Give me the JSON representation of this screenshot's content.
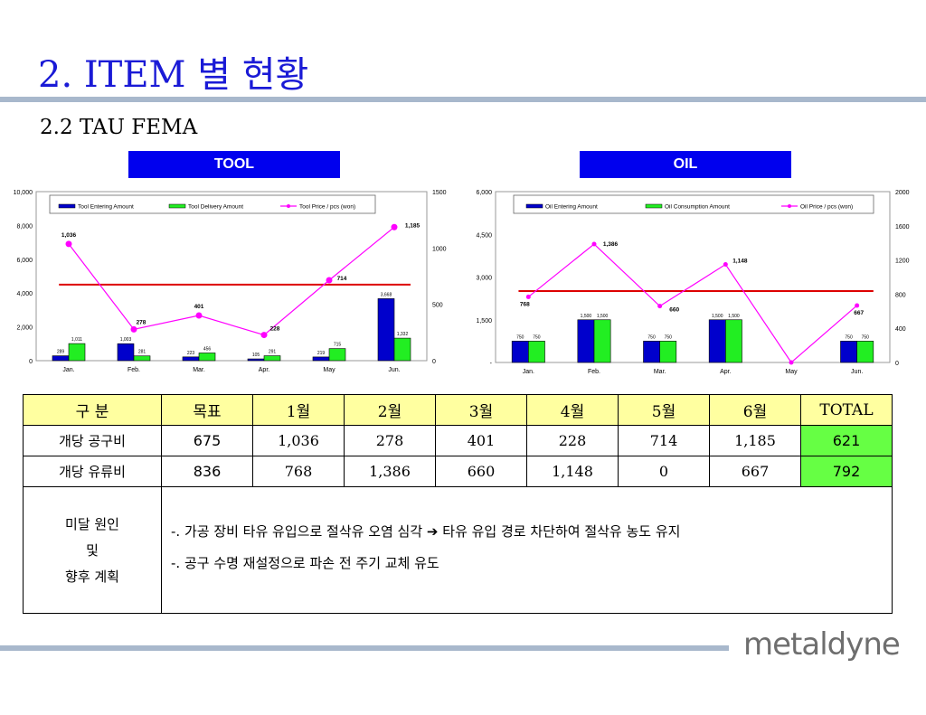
{
  "page": {
    "title": "2. ITEM 별 현황",
    "subtitle": "2.2 TAU FEMA",
    "logo": "metaldyne"
  },
  "charts_labels": {
    "tool": "TOOL",
    "oil": "OIL"
  },
  "colors": {
    "title": "#1a1ad6",
    "label_bg": "#0000ee",
    "bar1": "#0000cc",
    "bar2": "#22ee22",
    "price_line": "#ff00ff",
    "target_line": "#dd0000",
    "total_bg": "#66ff44",
    "header_bg": "#ffffa0"
  },
  "chart_data": [
    {
      "type": "bar",
      "name": "tool",
      "categories": [
        "Jan.",
        "Feb.",
        "Mar.",
        "Apr.",
        "May",
        "Jun."
      ],
      "series": [
        {
          "name": "Tool Entering Amount",
          "values": [
            289,
            1003,
            223,
            105,
            219,
            3668
          ],
          "labels": [
            "289",
            "1,003",
            "223",
            "105",
            "219",
            "3,668"
          ]
        },
        {
          "name": "Tool Delivery Amount",
          "values": [
            1011,
            281,
            456,
            291,
            715,
            1332
          ],
          "labels": [
            "1,011",
            "281",
            "456",
            "291",
            "715",
            "1,332"
          ]
        }
      ],
      "line": {
        "name": "Tool Price / pcs (won)",
        "values": [
          1036,
          278,
          401,
          228,
          714,
          1185
        ],
        "labels": [
          "1,036",
          "278",
          "401",
          "228",
          "714",
          "1,185"
        ]
      },
      "target": 675,
      "ylim": [
        0,
        10000
      ],
      "y_ticks": [
        "0",
        "2,000",
        "4,000",
        "6,000",
        "8,000",
        "10,000"
      ],
      "y2lim": [
        0,
        1500
      ],
      "y2_ticks": [
        "0",
        "500",
        "1000",
        "1500"
      ],
      "legend": "top"
    },
    {
      "type": "bar",
      "name": "oil",
      "categories": [
        "Jan.",
        "Feb.",
        "Mar.",
        "Apr.",
        "May",
        "Jun."
      ],
      "series": [
        {
          "name": "Oil Entering Amount",
          "values": [
            750,
            1500,
            750,
            1500,
            0,
            750
          ],
          "labels": [
            "750",
            "1,500",
            "750",
            "1,500",
            "",
            "750"
          ]
        },
        {
          "name": "Oil Consumption Amount",
          "values": [
            750,
            1500,
            750,
            1500,
            0,
            750
          ],
          "labels": [
            "750",
            "1,500",
            "750",
            "1,500",
            "",
            "750"
          ]
        }
      ],
      "line": {
        "name": "Oil Price / pcs (won)",
        "values": [
          768,
          1386,
          660,
          1148,
          0,
          667
        ],
        "labels": [
          "768",
          "1,386",
          "660",
          "1,148",
          "",
          "667"
        ]
      },
      "target": 836,
      "ylim": [
        0,
        6000
      ],
      "y_ticks": [
        "-",
        "1,500",
        "3,000",
        "4,500",
        "6,000"
      ],
      "y2lim": [
        0,
        2000
      ],
      "y2_ticks": [
        "0",
        "400",
        "800",
        "1200",
        "1600",
        "2000"
      ],
      "legend": "top"
    }
  ],
  "table": {
    "header": [
      "구 분",
      "목표",
      "1월",
      "2월",
      "3월",
      "4월",
      "5월",
      "6월",
      "TOTAL"
    ],
    "rows": [
      [
        "개당 공구비",
        "675",
        "1,036",
        "278",
        "401",
        "228",
        "714",
        "1,185",
        "621"
      ],
      [
        "개당 유류비",
        "836",
        "768",
        "1,386",
        "660",
        "1,148",
        "0",
        "667",
        "792"
      ]
    ],
    "reason_label": [
      "미달 원인",
      "및",
      "향후 계획"
    ],
    "notes": [
      "-. 가공 장비 타유 유입으로 절삭유 오염 심각 ➔ 타유 유입 경로 차단하여 절삭유 농도 유지",
      "-. 공구 수명 재설정으로 파손 전 주기 교체 유도"
    ]
  }
}
